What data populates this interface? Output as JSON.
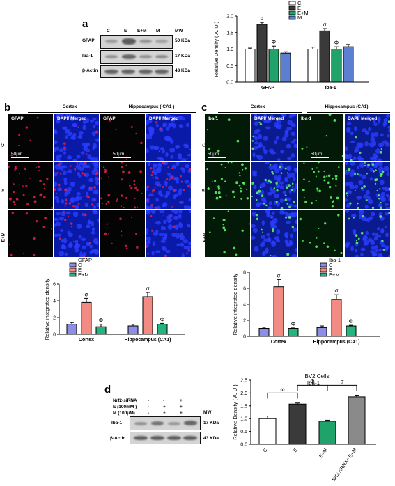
{
  "panels": {
    "a": "a",
    "b": "b",
    "c": "c",
    "d": "d"
  },
  "blot_a": {
    "columns": [
      "C",
      "E",
      "E+M",
      "M"
    ],
    "mw_header": "MW",
    "rows": [
      {
        "label": "GFAP",
        "mw": "50 KDa"
      },
      {
        "label": "Iba-1",
        "mw": "17 KDa"
      },
      {
        "label": "β-Actin",
        "mw": "43 KDa"
      }
    ]
  },
  "micro_b": {
    "group_headers": [
      "Cortex",
      "Hippocampus ( CA1 )"
    ],
    "column_labels": [
      "GFAP",
      "DAPI/ Merged",
      "GFAP",
      "DAPI/ Merged"
    ],
    "row_labels": [
      "C",
      "E",
      "E+M"
    ],
    "scale_labels": [
      "50μm",
      "50μm"
    ]
  },
  "micro_c": {
    "group_headers": [
      "Cortex",
      "Hippocampus (CA1)"
    ],
    "column_labels": [
      "Iba-1",
      "DAPI/ Merged",
      "Iba-1",
      "DAPI/ Merged"
    ],
    "row_labels": [
      "C",
      "E",
      "E+M"
    ],
    "scale_labels": [
      "50μm",
      "50μm"
    ]
  },
  "blot_d": {
    "treatments": [
      {
        "label": "Nrf2-siRNA",
        "signs": [
          "-",
          "-",
          "-",
          "+"
        ]
      },
      {
        "label": "E (100mM )",
        "signs": [
          "-",
          "-",
          "+",
          "+"
        ]
      },
      {
        "label": "M (100μM)",
        "signs": [
          "-",
          "-",
          "+",
          "+"
        ]
      }
    ],
    "mw_header": "MW",
    "rows": [
      {
        "label": "Iba-1",
        "mw": "17 KDa"
      },
      {
        "label": "β-Actin",
        "mw": "43 KDa"
      }
    ]
  },
  "colors": {
    "C": "#ffffff",
    "E": "#3a3a3a",
    "EM": "#1fa36b",
    "M": "#5b7fd1",
    "C_b": "#8d8fe6",
    "E_b": "#f28b84",
    "EM_b": "#27b37e",
    "nrf2": "#8a8a8a"
  },
  "chart_data": [
    {
      "id": "a",
      "type": "bar",
      "title": "",
      "xlabel": "",
      "ylabel": "Relative Density ( A. U.)",
      "ylim": [
        0.0,
        2.0
      ],
      "yticks": [
        "0.0",
        "0.5",
        "1.0",
        "1.5",
        "2.0"
      ],
      "categories": [
        "GFAP",
        "Iba-1"
      ],
      "legend": {
        "position": "top-right",
        "entries": [
          "C",
          "E",
          "E+M",
          "M"
        ]
      },
      "series": [
        {
          "name": "C",
          "values": [
            1.0,
            1.0
          ],
          "errors": [
            0.03,
            0.06
          ]
        },
        {
          "name": "E",
          "values": [
            1.75,
            1.55
          ],
          "errors": [
            0.06,
            0.07
          ]
        },
        {
          "name": "E+M",
          "values": [
            1.0,
            1.0
          ],
          "errors": [
            0.09,
            0.07
          ]
        },
        {
          "name": "M",
          "values": [
            0.88,
            1.07
          ],
          "errors": [
            0.04,
            0.07
          ]
        }
      ],
      "annotations": [
        {
          "series": "E",
          "category": "GFAP",
          "text": "σ"
        },
        {
          "series": "E+M",
          "category": "GFAP",
          "text": "Φ"
        },
        {
          "series": "E",
          "category": "Iba-1",
          "text": "σ"
        },
        {
          "series": "E+M",
          "category": "Iba-1",
          "text": "Φ"
        }
      ]
    },
    {
      "id": "b",
      "type": "bar",
      "title": "",
      "xlabel": "",
      "ylabel": "Relative integrated density",
      "ylim": [
        0,
        6
      ],
      "yticks": [
        "0",
        "2",
        "4",
        "6"
      ],
      "categories": [
        "Cortex",
        "Hippocampus (CA1)"
      ],
      "legend": {
        "position": "top",
        "title": "GFAP",
        "entries": [
          "C",
          "E",
          "E+M"
        ]
      },
      "series": [
        {
          "name": "C",
          "values": [
            1.2,
            1.0
          ],
          "errors": [
            0.2,
            0.2
          ]
        },
        {
          "name": "E",
          "values": [
            3.8,
            4.5
          ],
          "errors": [
            0.5,
            0.5
          ]
        },
        {
          "name": "E+M",
          "values": [
            0.9,
            1.2
          ],
          "errors": [
            0.3,
            0.1
          ]
        }
      ],
      "annotations": [
        {
          "series": "E",
          "category": "Cortex",
          "text": "σ"
        },
        {
          "series": "E+M",
          "category": "Cortex",
          "text": "Φ"
        },
        {
          "series": "E",
          "category": "Hippocampus (CA1)",
          "text": "σ"
        },
        {
          "series": "E+M",
          "category": "Hippocampus (CA1)",
          "text": "Φ"
        }
      ]
    },
    {
      "id": "c",
      "type": "bar",
      "title": "",
      "xlabel": "",
      "ylabel": "Relative integrated density",
      "ylim": [
        0,
        8
      ],
      "yticks": [
        "0",
        "2",
        "4",
        "6",
        "8"
      ],
      "categories": [
        "Cortex",
        "Hippocampus (CA1)"
      ],
      "legend": {
        "position": "top-right",
        "title": "Iba-1",
        "entries": [
          "C",
          "E",
          "E+M"
        ]
      },
      "series": [
        {
          "name": "C",
          "values": [
            1.0,
            1.1
          ],
          "errors": [
            0.15,
            0.2
          ]
        },
        {
          "name": "E",
          "values": [
            6.2,
            4.6
          ],
          "errors": [
            0.9,
            0.6
          ]
        },
        {
          "name": "E+M",
          "values": [
            1.0,
            1.3
          ],
          "errors": [
            0.05,
            0.08
          ]
        }
      ],
      "annotations": [
        {
          "series": "E",
          "category": "Cortex",
          "text": "σ"
        },
        {
          "series": "E+M",
          "category": "Cortex",
          "text": "Φ"
        },
        {
          "series": "E",
          "category": "Hippocampus (CA1)",
          "text": "σ"
        },
        {
          "series": "E+M",
          "category": "Hippocampus (CA1)",
          "text": "Φ"
        }
      ]
    },
    {
      "id": "d",
      "type": "bar",
      "title": "BV2 Cells",
      "subtitle": "Iba-1",
      "xlabel": "",
      "ylabel": "Relative Density ( A. U )",
      "ylim": [
        0.0,
        2.5
      ],
      "yticks": [
        "0.0",
        "0.5",
        "1.0",
        "1.5",
        "2.0",
        "2.5"
      ],
      "categories": [
        "C",
        "E",
        "E+M",
        "Nrf2 siRNA+ E+M"
      ],
      "values": [
        1.0,
        1.57,
        0.9,
        1.85
      ],
      "errors": [
        0.1,
        0.04,
        0.04,
        0.04
      ],
      "brackets": [
        {
          "from": "C",
          "to": "E",
          "text": "ω"
        },
        {
          "from": "E",
          "to": "E+M",
          "text": "Φ"
        },
        {
          "from": "E+M",
          "to": "Nrf2 siRNA+ E+M",
          "text": "σ"
        }
      ]
    }
  ]
}
